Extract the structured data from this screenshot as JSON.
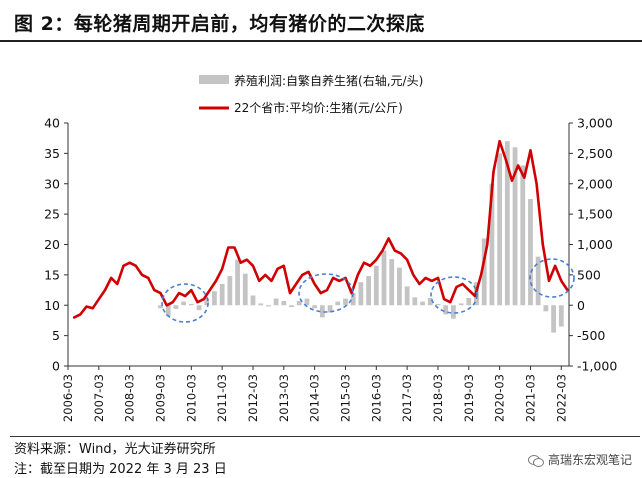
{
  "figure": {
    "title": "图 2：每轮猪周期开启前，均有猪价的二次探底",
    "source": "资料来源：Wind，光大证券研究所",
    "note": "注：截至日期为 2022 年 3 月 23 日",
    "watermark": "高瑞东宏观笔记",
    "watermark_icon": "wechat-icon"
  },
  "chart_data": {
    "type": "line",
    "grid": false,
    "legend_position": "top-center",
    "colors": {
      "line": "#d10000",
      "bars": "#c4c4c4",
      "circles": "#4a7fd1",
      "axis": "#333333"
    },
    "left_axis": {
      "ylim": [
        0,
        40
      ],
      "ticks": [
        "0",
        "5",
        "10",
        "15",
        "20",
        "25",
        "30",
        "35",
        "40"
      ]
    },
    "right_axis": {
      "ylim": [
        -1000,
        3000
      ],
      "ticks": [
        "-1,000",
        "-500",
        "0",
        "500",
        "1,000",
        "1,500",
        "2,000",
        "2,500",
        "3,000"
      ]
    },
    "x_ticks": [
      "2006-03",
      "2007-03",
      "2008-03",
      "2009-03",
      "2010-03",
      "2011-03",
      "2012-03",
      "2013-03",
      "2014-03",
      "2015-03",
      "2016-03",
      "2017-03",
      "2018-03",
      "2019-03",
      "2020-03",
      "2021-03",
      "2022-03"
    ],
    "xlim": [
      2006.0,
      2022.25
    ],
    "series": [
      {
        "name": "养殖利润:自繁自养生猪(右轴,元/头)",
        "type": "bar",
        "axis": "right",
        "x": [
          2009.0,
          2009.25,
          2009.5,
          2009.75,
          2010.0,
          2010.25,
          2010.5,
          2010.75,
          2011.0,
          2011.25,
          2011.5,
          2011.75,
          2012.0,
          2012.25,
          2012.5,
          2012.75,
          2013.0,
          2013.25,
          2013.5,
          2013.75,
          2014.0,
          2014.25,
          2014.5,
          2014.75,
          2015.0,
          2015.25,
          2015.5,
          2015.75,
          2016.0,
          2016.25,
          2016.5,
          2016.75,
          2017.0,
          2017.25,
          2017.5,
          2017.75,
          2018.0,
          2018.25,
          2018.5,
          2018.75,
          2019.0,
          2019.25,
          2019.5,
          2019.75,
          2020.0,
          2020.25,
          2020.5,
          2020.75,
          2021.0,
          2021.25,
          2021.5,
          2021.75,
          2022.0
        ],
        "values": [
          -50,
          -180,
          -60,
          60,
          20,
          -80,
          120,
          230,
          350,
          480,
          750,
          520,
          160,
          30,
          -20,
          110,
          70,
          -30,
          70,
          110,
          -50,
          -200,
          -120,
          60,
          110,
          200,
          380,
          480,
          650,
          900,
          760,
          620,
          310,
          130,
          60,
          120,
          20,
          -150,
          -220,
          30,
          120,
          380,
          1100,
          2000,
          2500,
          2700,
          2600,
          2300,
          1750,
          800,
          -100,
          -450,
          -350
        ]
      },
      {
        "name": "22个省市:平均价:生猪(元/公斤)",
        "type": "line",
        "axis": "left",
        "x": [
          2006.2,
          2006.4,
          2006.6,
          2006.8,
          2007.0,
          2007.2,
          2007.4,
          2007.6,
          2007.8,
          2008.0,
          2008.2,
          2008.4,
          2008.6,
          2008.8,
          2009.0,
          2009.2,
          2009.4,
          2009.6,
          2009.8,
          2010.0,
          2010.2,
          2010.4,
          2010.6,
          2010.8,
          2011.0,
          2011.2,
          2011.4,
          2011.6,
          2011.8,
          2012.0,
          2012.2,
          2012.4,
          2012.6,
          2012.8,
          2013.0,
          2013.2,
          2013.4,
          2013.6,
          2013.8,
          2014.0,
          2014.2,
          2014.4,
          2014.6,
          2014.8,
          2015.0,
          2015.2,
          2015.4,
          2015.6,
          2015.8,
          2016.0,
          2016.2,
          2016.4,
          2016.6,
          2016.8,
          2017.0,
          2017.2,
          2017.4,
          2017.6,
          2017.8,
          2018.0,
          2018.2,
          2018.4,
          2018.6,
          2018.8,
          2019.0,
          2019.2,
          2019.4,
          2019.6,
          2019.8,
          2020.0,
          2020.2,
          2020.4,
          2020.6,
          2020.8,
          2021.0,
          2021.2,
          2021.4,
          2021.6,
          2021.8,
          2022.0,
          2022.2
        ],
        "values": [
          8.0,
          8.5,
          9.8,
          9.5,
          11.0,
          12.5,
          14.5,
          13.5,
          16.5,
          17.0,
          16.5,
          15.0,
          14.5,
          12.5,
          12.0,
          10.0,
          10.5,
          12.0,
          11.5,
          12.5,
          10.5,
          11.0,
          12.5,
          14.0,
          16.0,
          19.5,
          19.5,
          17.0,
          17.5,
          16.5,
          14.0,
          15.0,
          14.0,
          16.0,
          16.5,
          12.0,
          13.5,
          15.0,
          15.5,
          13.5,
          12.0,
          12.5,
          14.5,
          14.0,
          14.5,
          12.0,
          15.0,
          17.0,
          16.5,
          17.5,
          19.0,
          21.0,
          19.0,
          18.5,
          17.5,
          15.0,
          13.5,
          14.5,
          14.0,
          14.5,
          11.0,
          10.5,
          13.0,
          13.5,
          12.5,
          11.5,
          15.0,
          20.0,
          32.0,
          37.0,
          34.0,
          30.5,
          33.0,
          31.0,
          35.5,
          30.0,
          20.0,
          14.0,
          16.5,
          14.0,
          12.5
        ]
      }
    ]
  }
}
